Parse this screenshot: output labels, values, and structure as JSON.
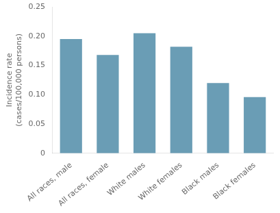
{
  "chart_data": {
    "type": "bar",
    "categories": [
      "All races, male",
      "All races, female",
      "White males",
      "White females",
      "Black males",
      "Black females"
    ],
    "values": [
      0.195,
      0.168,
      0.205,
      0.182,
      0.12,
      0.096
    ],
    "color": "#6a9db5",
    "ylabel": "Incidence rate\n(cases/100,000 persons)",
    "ylim": [
      0,
      0.25
    ],
    "yticks": [
      0,
      0.05,
      {
        "value": 0.1,
        "label": "0.10"
      },
      0.15,
      {
        "value": 0.2,
        "label": "0.20"
      },
      0.25
    ],
    "grid": false
  }
}
